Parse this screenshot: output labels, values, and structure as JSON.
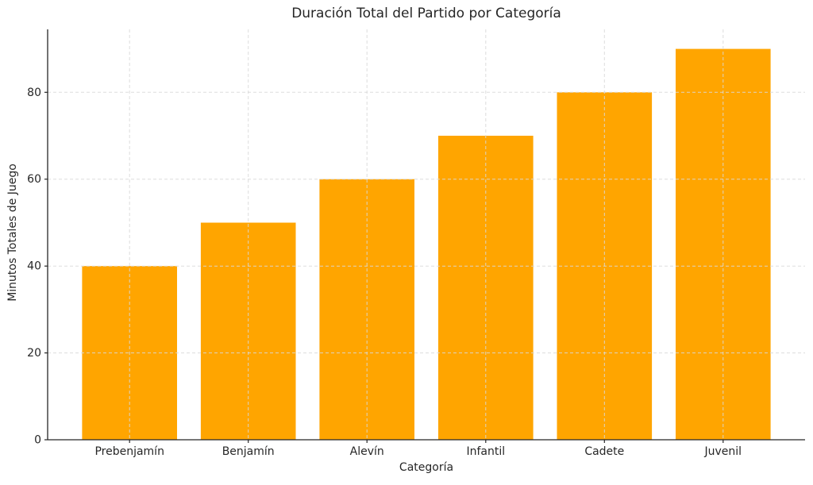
{
  "chart_data": {
    "type": "bar",
    "title": "Duración Total del Partido por Categoría",
    "xlabel": "Categoría",
    "ylabel": "Minutos Totales de Juego",
    "categories": [
      "Prebenjamín",
      "Benjamín",
      "Alevín",
      "Infantil",
      "Cadete",
      "Juvenil"
    ],
    "values": [
      40,
      50,
      60,
      70,
      80,
      90
    ],
    "yticks": [
      0,
      20,
      40,
      60,
      80
    ],
    "ylim": [
      0,
      94.5
    ],
    "bar_color": "#FFA500",
    "grid": true,
    "grid_style": "dashed",
    "grid_color": "#d9d9d9",
    "axis_color": "#262626",
    "text_color": "#262626",
    "legend": null
  }
}
